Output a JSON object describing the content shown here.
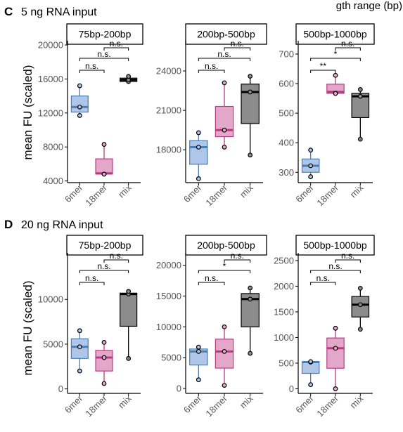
{
  "top_right_fragment": "gth range (bp)",
  "x_labels": [
    "6mer",
    "18mer",
    "mix"
  ],
  "group_colors": {
    "6mer": {
      "fill": "#aec7e8",
      "line": "#4a7fb5"
    },
    "18mer": {
      "fill": "#e3a8c9",
      "line": "#b83a84"
    },
    "mix": {
      "fill": "#8c8c8c",
      "line": "#000000"
    }
  },
  "chart_data": [
    {
      "type": "box",
      "row": "C",
      "row_label": "5 ng RNA input",
      "ylabel": "mean FU (scaled)",
      "panels": [
        {
          "title": "75bp-200bp",
          "ylim": [
            3800,
            20500
          ],
          "yticks": [
            4000,
            8000,
            12000,
            16000,
            20000
          ],
          "tick_labels": [
            "4000",
            "8000",
            "12000",
            "16000",
            "20000"
          ],
          "boxes": [
            {
              "group": "6mer",
              "min": 11700,
              "q1": 12100,
              "median": 12700,
              "q3": 14000,
              "max": 15200,
              "points": [
                11700,
                12700,
                15200
              ]
            },
            {
              "group": "18mer",
              "min": 4800,
              "q1": 4800,
              "median": 4900,
              "q3": 6600,
              "max": 8300,
              "points": [
                4800,
                4800,
                8300
              ]
            },
            {
              "group": "mix",
              "min": 15700,
              "q1": 15700,
              "median": 15900,
              "q3": 16100,
              "max": 16300,
              "points": [
                15700,
                15900,
                16300
              ]
            }
          ],
          "comparisons": [
            {
              "from": "6mer",
              "to": "18mer",
              "label": "n.s."
            },
            {
              "from": "6mer",
              "to": "mix",
              "label": "n.s."
            },
            {
              "from": "18mer",
              "to": "mix",
              "label": "n.s."
            }
          ]
        },
        {
          "title": "200bp-500bp",
          "ylim": [
            15500,
            26300
          ],
          "yticks": [
            18000,
            21000,
            24000
          ],
          "tick_labels": [
            "18000",
            "21000",
            "24000"
          ],
          "boxes": [
            {
              "group": "6mer",
              "min": 15800,
              "q1": 16900,
              "median": 18200,
              "q3": 18700,
              "max": 19300,
              "points": [
                15800,
                18200,
                19300
              ]
            },
            {
              "group": "18mer",
              "min": 18200,
              "q1": 19000,
              "median": 19500,
              "q3": 21300,
              "max": 23100,
              "points": [
                18200,
                19500,
                23100
              ]
            },
            {
              "group": "mix",
              "min": 17600,
              "q1": 20000,
              "median": 22400,
              "q3": 23000,
              "max": 23600,
              "points": [
                17600,
                22400,
                23600
              ]
            }
          ],
          "comparisons": [
            {
              "from": "6mer",
              "to": "18mer",
              "label": "n.s."
            },
            {
              "from": "6mer",
              "to": "mix",
              "label": "n.s."
            },
            {
              "from": "18mer",
              "to": "mix",
              "label": "n.s."
            }
          ]
        },
        {
          "title": "500bp-1000bp",
          "ylim": [
            265,
            745
          ],
          "yticks": [
            300,
            400,
            500,
            600,
            700
          ],
          "tick_labels": [
            "300",
            "400",
            "500",
            "600",
            "700"
          ],
          "boxes": [
            {
              "group": "6mer",
              "min": 285,
              "q1": 300,
              "median": 322,
              "q3": 345,
              "max": 375,
              "points": [
                285,
                322,
                375
              ]
            },
            {
              "group": "18mer",
              "min": 567,
              "q1": 567,
              "median": 572,
              "q3": 598,
              "max": 628,
              "points": [
                567,
                567,
                628
              ]
            },
            {
              "group": "mix",
              "min": 412,
              "q1": 485,
              "median": 557,
              "q3": 567,
              "max": 580,
              "points": [
                412,
                557,
                580
              ]
            }
          ],
          "comparisons": [
            {
              "from": "6mer",
              "to": "18mer",
              "label": "**"
            },
            {
              "from": "6mer",
              "to": "mix",
              "label": "*"
            },
            {
              "from": "18mer",
              "to": "mix",
              "label": "n.s."
            }
          ]
        }
      ]
    },
    {
      "type": "box",
      "row": "D",
      "row_label": "20 ng RNA input",
      "ylabel": "mean FU (scaled)",
      "panels": [
        {
          "title": "75bp-200bp",
          "ylim": [
            -500,
            15200
          ],
          "yticks": [
            0,
            5000,
            10000
          ],
          "tick_labels": [
            "0",
            "5000",
            "10000"
          ],
          "boxes": [
            {
              "group": "6mer",
              "min": 2000,
              "q1": 3400,
              "median": 4700,
              "q3": 5600,
              "max": 6500,
              "points": [
                2000,
                4700,
                6500
              ]
            },
            {
              "group": "18mer",
              "min": 600,
              "q1": 2000,
              "median": 3500,
              "q3": 4300,
              "max": 5200,
              "points": [
                600,
                3500,
                5200
              ]
            },
            {
              "group": "mix",
              "min": 3400,
              "q1": 7000,
              "median": 10600,
              "q3": 10700,
              "max": 10900,
              "points": [
                3400,
                10600,
                10900
              ]
            }
          ],
          "comparisons": [
            {
              "from": "6mer",
              "to": "18mer",
              "label": "n.s."
            },
            {
              "from": "6mer",
              "to": "mix",
              "label": "n.s."
            },
            {
              "from": "18mer",
              "to": "mix",
              "label": "n.s."
            }
          ]
        },
        {
          "title": "200bp-500bp",
          "ylim": [
            -800,
            22000
          ],
          "yticks": [
            0,
            5000,
            10000,
            15000,
            20000
          ],
          "tick_labels": [
            "0",
            "5000",
            "10000",
            "15000",
            "20000"
          ],
          "boxes": [
            {
              "group": "6mer",
              "min": 1400,
              "q1": 3800,
              "median": 6000,
              "q3": 6400,
              "max": 6700,
              "points": [
                1400,
                6000,
                6700
              ]
            },
            {
              "group": "18mer",
              "min": 500,
              "q1": 3300,
              "median": 6000,
              "q3": 8000,
              "max": 10000,
              "points": [
                500,
                6000,
                10000
              ]
            },
            {
              "group": "mix",
              "min": 5700,
              "q1": 10000,
              "median": 14500,
              "q3": 15400,
              "max": 16300,
              "points": [
                5700,
                14500,
                16300
              ]
            }
          ],
          "comparisons": [
            {
              "from": "6mer",
              "to": "18mer",
              "label": "n.s."
            },
            {
              "from": "6mer",
              "to": "mix",
              "label": "*"
            },
            {
              "from": "18mer",
              "to": "mix",
              "label": "n.s."
            }
          ]
        },
        {
          "title": "500bp-1000bp",
          "ylim": [
            -90,
            2650
          ],
          "yticks": [
            0,
            500,
            1000,
            1500,
            2000,
            2500
          ],
          "tick_labels": [
            "0",
            "500",
            "1000",
            "1500",
            "2000",
            "2500"
          ],
          "boxes": [
            {
              "group": "6mer",
              "min": 80,
              "q1": 300,
              "median": 520,
              "q3": 525,
              "max": 530,
              "points": [
                80,
                520,
                530
              ]
            },
            {
              "group": "18mer",
              "min": 0,
              "q1": 400,
              "median": 790,
              "q3": 990,
              "max": 1180,
              "points": [
                0,
                790,
                1180
              ]
            },
            {
              "group": "mix",
              "min": 1160,
              "q1": 1400,
              "median": 1640,
              "q3": 1800,
              "max": 1960,
              "points": [
                1160,
                1640,
                1960
              ]
            }
          ],
          "comparisons": [
            {
              "from": "6mer",
              "to": "18mer",
              "label": "n.s."
            },
            {
              "from": "6mer",
              "to": "mix",
              "label": "n.s."
            },
            {
              "from": "18mer",
              "to": "mix",
              "label": "n.s."
            }
          ]
        }
      ]
    }
  ]
}
